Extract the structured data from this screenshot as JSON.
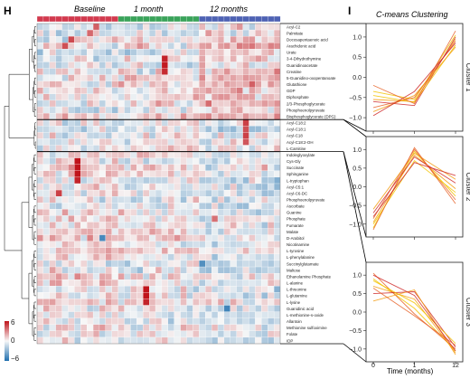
{
  "panels": {
    "left_label": "H",
    "right_label": "I"
  },
  "heatmap": {
    "group_labels": [
      "Baseline",
      "1 month",
      "12 months"
    ],
    "group_colors": [
      "#d23a4e",
      "#3aa35a",
      "#4e62b3"
    ],
    "colorscale": {
      "min": -6,
      "mid": 0,
      "max": 6,
      "tick_labels": [
        "6",
        "0",
        "−6"
      ],
      "colors": [
        "#1f6fae",
        "#f7f7f7",
        "#c0141b"
      ]
    },
    "row_labels": [
      "Acyl-C2",
      "Palmitate",
      "Docosapentaenoic acid",
      "Arachidonic acid",
      "Urate",
      "3-4-Dihydrothymine",
      "Guanidinoacetate",
      "Creatine",
      "5-Guanidino-oxopentanoate",
      "Glutathione",
      "GDP",
      "Diphosphate",
      "2/3-Phosphoglycerate",
      "Phosphoenolpyruvate",
      "Bisphosphoglycerate (DPG)",
      "Acyl-C18:2",
      "Acyl-C18:1",
      "Acyl-C18",
      "Acyl-C18:2-OH",
      "L-Carnitine",
      "Indoleglyoxylate",
      "Cys-Gly",
      "Succinate",
      "Sphinganine",
      "L-tryptophan",
      "Acyl-C5:1",
      "Acyl-C6-DC",
      "Phosphoenolpyruvate",
      "Ascorbate",
      "Guanine",
      "Phosphate",
      "Fumarate",
      "Malate",
      "D-Arabitol",
      "Nicotinamine",
      "L-tyrosine",
      "L-phenylalanine",
      "Succinylglutamate",
      "Maltose",
      "Ethanolamine Phosphate",
      "L-alanine",
      "L-threonine",
      "L-glutamine",
      "L-lysine",
      "Guanidinic acid",
      "L-methionine-s-oxide",
      "Allantoin",
      "Methionine sulfoximine",
      "Folate",
      "IDP"
    ]
  },
  "chart_data": {
    "type": "line",
    "title": "C-means Clustering",
    "xlabel": "Time (months)",
    "x": [
      0,
      1,
      12
    ],
    "x_tick_labels": [
      "0",
      "1",
      "12"
    ],
    "ylim": [
      -1.2,
      1.2
    ],
    "y_ticks": [
      -1.0,
      -0.5,
      0.0,
      0.5,
      1.0
    ],
    "y_tick_labels": [
      "−1.0",
      "−0.5",
      "0.0",
      "0.5",
      "1.0"
    ],
    "clusters": [
      {
        "name": "Cluster 1",
        "series": [
          {
            "values": [
              -0.35,
              -0.55,
              1.05
            ]
          },
          {
            "values": [
              -0.55,
              -0.6,
              0.95
            ]
          },
          {
            "values": [
              -0.75,
              -0.5,
              0.9
            ]
          },
          {
            "values": [
              -0.6,
              -0.7,
              1.0
            ]
          },
          {
            "values": [
              -0.45,
              -0.62,
              0.8
            ]
          },
          {
            "values": [
              -0.85,
              -0.45,
              0.75
            ]
          },
          {
            "values": [
              -0.2,
              -0.65,
              1.15
            ]
          },
          {
            "values": [
              -0.95,
              -0.35,
              0.85
            ]
          }
        ]
      },
      {
        "name": "Cluster 2",
        "series": [
          {
            "values": [
              -1.1,
              0.95,
              -0.25
            ]
          },
          {
            "values": [
              -0.95,
              0.85,
              -0.05
            ]
          },
          {
            "values": [
              -0.85,
              1.0,
              -0.35
            ]
          },
          {
            "values": [
              -0.7,
              0.8,
              0.1
            ]
          },
          {
            "values": [
              -1.0,
              0.7,
              -0.15
            ]
          },
          {
            "values": [
              -0.6,
              0.9,
              0.2
            ]
          },
          {
            "values": [
              -1.15,
              1.05,
              -0.45
            ]
          },
          {
            "values": [
              -0.8,
              0.65,
              0.3
            ]
          }
        ]
      },
      {
        "name": "Cluster 3",
        "series": [
          {
            "values": [
              0.9,
              0.1,
              -1.05
            ]
          },
          {
            "values": [
              0.7,
              0.35,
              -1.1
            ]
          },
          {
            "values": [
              1.05,
              -0.05,
              -1.0
            ]
          },
          {
            "values": [
              0.5,
              0.55,
              -0.95
            ]
          },
          {
            "values": [
              0.85,
              0.25,
              -0.85
            ]
          },
          {
            "values": [
              0.3,
              0.6,
              -1.15
            ]
          },
          {
            "values": [
              0.65,
              -0.1,
              -0.9
            ]
          },
          {
            "values": [
              1.0,
              0.45,
              -1.05
            ]
          }
        ]
      }
    ],
    "line_colors": [
      "#f2c300",
      "#f39c12",
      "#e8642a",
      "#cf2a2a"
    ]
  }
}
